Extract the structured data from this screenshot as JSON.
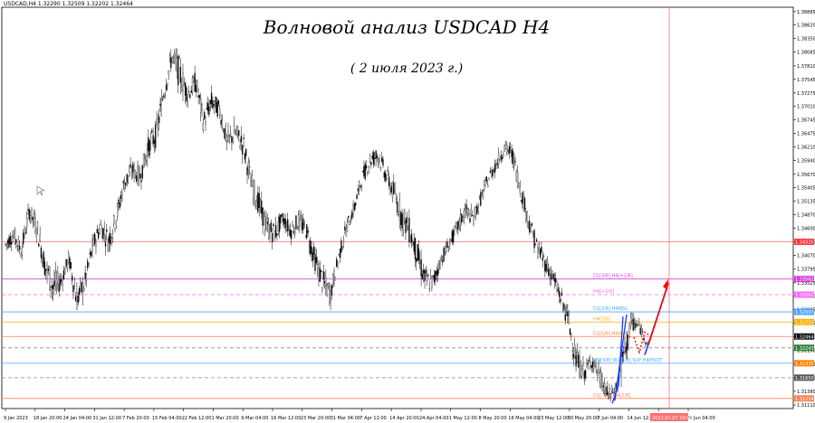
{
  "header": {
    "symbol_info": "USDCAD,H4  1.32290 1.32509 1.32202 1.32464"
  },
  "annotations": {
    "title": "Волновой анализ USDCAD H4",
    "subtitle": "( 2 июля 2023 г.)"
  },
  "chart_data": {
    "type": "candlestick",
    "symbol": "USDCAD",
    "timeframe": "H4",
    "ylim": [
      1.3104,
      1.3897
    ],
    "y_ticks": [
      "1.38885",
      "1.38620",
      "1.38350",
      "1.38085",
      "1.37810",
      "1.37545",
      "1.37275",
      "1.37010",
      "1.36745",
      "1.36475",
      "1.36210",
      "1.35940",
      "1.35670",
      "1.35405",
      "1.35135",
      "1.34870",
      "1.34600",
      "1.34335",
      "1.34070",
      "1.33795",
      "1.33525",
      "1.33260",
      "1.32995",
      "1.32725",
      "1.32460",
      "1.32190",
      "1.31915",
      "1.31645",
      "1.31380",
      "1.31110"
    ],
    "x_ticks": [
      "9 Jan 2023",
      "18 Jan 20:00",
      "24 Jan 04:00",
      "31 Jan 12:00",
      "7 Feb 20:00",
      "15 Feb 04:00",
      "22 Feb 12:00",
      "1 Mar 20:00",
      "9 Mar 04:00",
      "16 Mar 12:00",
      "23 Mar 20:00",
      "31 Mar 04:00",
      "7 Apr 12:00",
      "14 Apr 20:00",
      "24 Apr 04:00",
      "1 May 12:00",
      "8 May 20:00",
      "16 May 04:00",
      "23 May 12:00",
      "30 May 20:00",
      "7 Jun 04:00",
      "14 Jun 12:00",
      "21 Jun 20:00",
      "29 Jun 04:00"
    ],
    "x_end_label": "2023.07.07 20:00",
    "price_path": [
      [
        1.345,
        1.3404
      ],
      [
        1.347,
        1.3425
      ],
      [
        1.344,
        1.339
      ],
      [
        1.352,
        1.347
      ],
      [
        1.349,
        1.343
      ],
      [
        1.342,
        1.335
      ],
      [
        1.339,
        1.33
      ],
      [
        1.338,
        1.333
      ],
      [
        1.342,
        1.338
      ],
      [
        1.336,
        1.328
      ],
      [
        1.338,
        1.332
      ],
      [
        1.345,
        1.3396
      ],
      [
        1.349,
        1.344
      ],
      [
        1.347,
        1.34
      ],
      [
        1.351,
        1.3455
      ],
      [
        1.358,
        1.352
      ],
      [
        1.36,
        1.355
      ],
      [
        1.359,
        1.3535
      ],
      [
        1.365,
        1.359
      ],
      [
        1.368,
        1.361
      ],
      [
        1.376,
        1.37
      ],
      [
        1.383,
        1.377
      ],
      [
        1.381,
        1.372
      ],
      [
        1.375,
        1.37
      ],
      [
        1.378,
        1.372
      ],
      [
        1.37,
        1.364
      ],
      [
        1.374,
        1.368
      ],
      [
        1.372,
        1.367
      ],
      [
        1.366,
        1.36
      ],
      [
        1.368,
        1.362
      ],
      [
        1.366,
        1.359
      ],
      [
        1.358,
        1.352
      ],
      [
        1.354,
        1.3475
      ],
      [
        1.349,
        1.343
      ],
      [
        1.348,
        1.342
      ],
      [
        1.35,
        1.346
      ],
      [
        1.348,
        1.343
      ],
      [
        1.35,
        1.345
      ],
      [
        1.348,
        1.343
      ],
      [
        1.343,
        1.337
      ],
      [
        1.339,
        1.332
      ],
      [
        1.336,
        1.33
      ],
      [
        1.342,
        1.338
      ],
      [
        1.348,
        1.344
      ],
      [
        1.352,
        1.348
      ],
      [
        1.358,
        1.354
      ],
      [
        1.362,
        1.357
      ],
      [
        1.363,
        1.358
      ],
      [
        1.359,
        1.354
      ],
      [
        1.356,
        1.35
      ],
      [
        1.352,
        1.345
      ],
      [
        1.349,
        1.342
      ],
      [
        1.344,
        1.337
      ],
      [
        1.339,
        1.332
      ],
      [
        1.338,
        1.333
      ],
      [
        1.342,
        1.338
      ],
      [
        1.345,
        1.341
      ],
      [
        1.348,
        1.344
      ],
      [
        1.352,
        1.347
      ],
      [
        1.35,
        1.346
      ],
      [
        1.354,
        1.35
      ],
      [
        1.358,
        1.354
      ],
      [
        1.361,
        1.357
      ],
      [
        1.364,
        1.36
      ],
      [
        1.363,
        1.358
      ],
      [
        1.356,
        1.351
      ],
      [
        1.35,
        1.345
      ],
      [
        1.345,
        1.34
      ],
      [
        1.342,
        1.337
      ],
      [
        1.339,
        1.334
      ],
      [
        1.335,
        1.33
      ],
      [
        1.331,
        1.325
      ],
      [
        1.323,
        1.317
      ],
      [
        1.32,
        1.315
      ],
      [
        1.322,
        1.318
      ],
      [
        1.319,
        1.314
      ],
      [
        1.315,
        1.311
      ],
      [
        1.316,
        1.312
      ],
      [
        1.325,
        1.316
      ],
      [
        1.33,
        1.325
      ],
      [
        1.328,
        1.325
      ],
      [
        1.3246,
        1.322
      ]
    ],
    "levels": [
      {
        "price": 1.34335,
        "color": "#ff6b6b",
        "text": "",
        "style": "solid"
      },
      {
        "price": 1.336,
        "color": "#d63fd6",
        "text": "D1[3/8] H4[+2/8]",
        "style": "solid"
      },
      {
        "price": 1.3329,
        "color": "#ff66ff",
        "text": "H4[+1/8]",
        "style": "dashed"
      },
      {
        "price": 1.3295,
        "color": "#4aa3ff",
        "text": "D1[2/8] H4REG",
        "style": "solid"
      },
      {
        "price": 1.3275,
        "color": "#ffb000",
        "text": "H4[7/8]",
        "style": "solid"
      },
      {
        "price": 1.32464,
        "color": "#ff7f50",
        "text": "D1[1/8] H4[6/8]",
        "style": "solid"
      },
      {
        "price": 1.3224,
        "color": "#8a8a8a",
        "text": "",
        "style": "dashed"
      },
      {
        "price": 1.31935,
        "color": "#4aa3ff",
        "text": "MN[3/8] W1[4/8] SUP H4PIVOT",
        "style": "solid"
      },
      {
        "price": 1.3165,
        "color": "#8a8a8a",
        "text": "",
        "style": "dashed"
      },
      {
        "price": 1.3124,
        "color": "#ff7f50",
        "text": "D1[-1/8] H4[2/8]",
        "style": "solid"
      }
    ],
    "price_tags": [
      {
        "price": 1.34335,
        "text": "1.34335",
        "bg": "#ff3333"
      },
      {
        "price": 1.336,
        "text": "1.33562",
        "bg": "#d63fd6"
      },
      {
        "price": 1.3329,
        "text": "1.33262",
        "bg": "#ff66ff"
      },
      {
        "price": 1.3295,
        "text": "1.32997",
        "bg": "#4aa3ff"
      },
      {
        "price": 1.3275,
        "text": "1.32731",
        "bg": "#ffb000"
      },
      {
        "price": 1.32464,
        "text": "1.32464",
        "bg": "#111111"
      },
      {
        "price": 1.3224,
        "text": "1.32243",
        "bg": "#2e7d32"
      },
      {
        "price": 1.31935,
        "text": "1.31935",
        "bg": "#ff7f00"
      },
      {
        "price": 1.3165,
        "text": "1.31650",
        "bg": "#555555"
      },
      {
        "price": 1.3124,
        "text": "1.31234",
        "bg": "#ff7f50"
      }
    ],
    "grid": false,
    "colors": {
      "candles": "#000000",
      "bg": "#ffffff",
      "forecast_up": "#ff0000",
      "forecast_blue": "#1a3cff",
      "vline": "#ff7070"
    }
  }
}
